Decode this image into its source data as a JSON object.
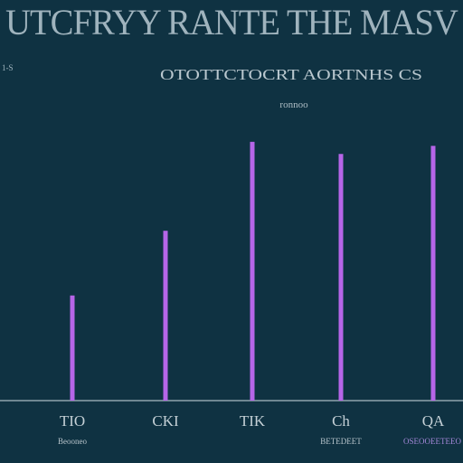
{
  "chart_data": {
    "type": "bar",
    "title": "UTCFRYY RANTE THE MASV",
    "subtitle": "OTOTTCTOCRT AORTNHS CS",
    "subtitle2": "ronnoo",
    "corner_label": "1-S",
    "categories": [
      "TIO",
      "CKI",
      "TIK",
      "Ch",
      "QA"
    ],
    "category_sublabels": [
      "Beooneo",
      "",
      "",
      "BETEDEET",
      "OSEOOEETEEO"
    ],
    "values": [
      26,
      42,
      64,
      61,
      63
    ],
    "ylim": [
      0,
      70
    ],
    "grid": false,
    "legend": "none",
    "colors": {
      "background": "#0f3242",
      "bar": "#b665e8",
      "axis": "#8fa3ad",
      "sublabel_accent": "#a487d8"
    }
  }
}
